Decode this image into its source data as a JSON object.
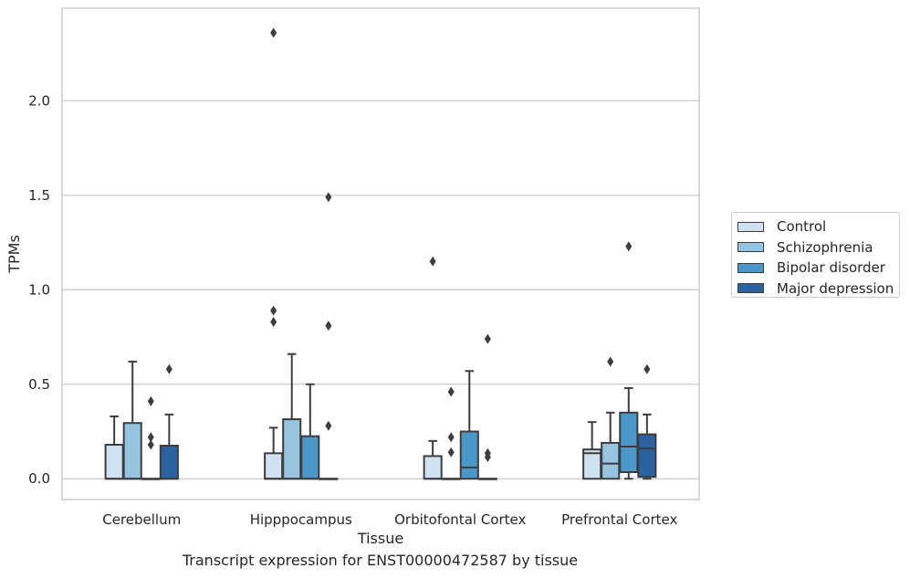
{
  "figure": {
    "caption": "Transcript expression for ENST00000472587 by tissue"
  },
  "chart_data": {
    "type": "box",
    "xlabel": "Tissue",
    "ylabel": "TPMs",
    "ylim": [
      -0.11,
      2.49
    ],
    "yticks": [
      0.0,
      0.5,
      1.0,
      1.5,
      2.0
    ],
    "ytick_labels": [
      "0.0",
      "0.5",
      "1.0",
      "1.5",
      "2.0"
    ],
    "grid": "horizontal",
    "legend_position": "right",
    "categories": [
      "Cerebellum",
      "Hipppocampus",
      "Orbitofontal Cortex",
      "Prefrontal Cortex"
    ],
    "series": [
      {
        "name": "Control",
        "color": "#d0e1f2",
        "boxes": [
          {
            "whislo": 0.0,
            "q1": 0.0,
            "med": 0.0,
            "q3": 0.18,
            "whishi": 0.33,
            "fliers": []
          },
          {
            "whislo": 0.0,
            "q1": 0.0,
            "med": 0.0,
            "q3": 0.135,
            "whishi": 0.27,
            "fliers": [
              0.83,
              0.89,
              2.36
            ]
          },
          {
            "whislo": 0.0,
            "q1": 0.0,
            "med": 0.0,
            "q3": 0.12,
            "whishi": 0.2,
            "fliers": [
              1.15
            ]
          },
          {
            "whislo": 0.0,
            "q1": 0.0,
            "med": 0.135,
            "q3": 0.155,
            "whishi": 0.3,
            "fliers": []
          }
        ]
      },
      {
        "name": "Schizophrenia",
        "color": "#94c4df",
        "boxes": [
          {
            "whislo": 0.0,
            "q1": 0.0,
            "med": 0.0,
            "q3": 0.295,
            "whishi": 0.62,
            "fliers": []
          },
          {
            "whislo": 0.0,
            "q1": 0.0,
            "med": 0.0,
            "q3": 0.315,
            "whishi": 0.66,
            "fliers": []
          },
          {
            "whislo": 0.0,
            "q1": 0.0,
            "med": 0.0,
            "q3": 0.0,
            "whishi": 0.0,
            "fliers": [
              0.14,
              0.22,
              0.46
            ]
          },
          {
            "whislo": 0.0,
            "q1": 0.0,
            "med": 0.08,
            "q3": 0.19,
            "whishi": 0.35,
            "fliers": [
              0.62
            ]
          }
        ]
      },
      {
        "name": "Bipolar disorder",
        "color": "#4a98c9",
        "boxes": [
          {
            "whislo": 0.0,
            "q1": 0.0,
            "med": 0.0,
            "q3": 0.0,
            "whishi": 0.0,
            "fliers": [
              0.18,
              0.22,
              0.41
            ]
          },
          {
            "whislo": 0.0,
            "q1": 0.0,
            "med": 0.0,
            "q3": 0.225,
            "whishi": 0.5,
            "fliers": []
          },
          {
            "whislo": 0.0,
            "q1": 0.0,
            "med": 0.06,
            "q3": 0.25,
            "whishi": 0.57,
            "fliers": []
          },
          {
            "whislo": 0.0,
            "q1": 0.035,
            "med": 0.17,
            "q3": 0.35,
            "whishi": 0.48,
            "fliers": [
              1.23
            ]
          }
        ]
      },
      {
        "name": "Major depression",
        "color": "#2a63a0",
        "boxes": [
          {
            "whislo": 0.0,
            "q1": 0.0,
            "med": 0.0,
            "q3": 0.175,
            "whishi": 0.34,
            "fliers": [
              0.58
            ]
          },
          {
            "whislo": 0.0,
            "q1": 0.0,
            "med": 0.0,
            "q3": 0.0,
            "whishi": 0.0,
            "fliers": [
              0.28,
              0.81,
              1.49
            ]
          },
          {
            "whislo": 0.0,
            "q1": 0.0,
            "med": 0.0,
            "q3": 0.0,
            "whishi": 0.0,
            "fliers": [
              0.115,
              0.135,
              0.74
            ]
          },
          {
            "whislo": 0.0,
            "q1": 0.01,
            "med": 0.16,
            "q3": 0.235,
            "whishi": 0.34,
            "fliers": [
              0.58
            ]
          }
        ]
      }
    ]
  }
}
